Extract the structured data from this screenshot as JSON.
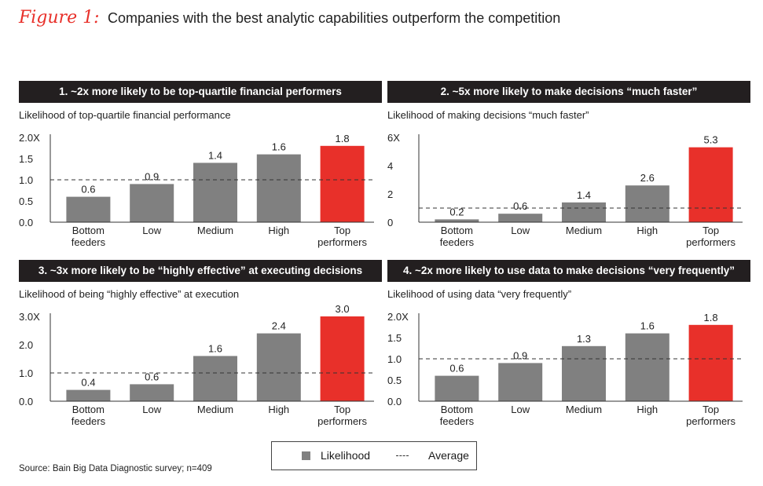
{
  "figure": {
    "label": "Figure 1:",
    "title": "Companies with the best analytic capabilities outperform the competition"
  },
  "legend": {
    "likelihood": "Likelihood",
    "average": "Average"
  },
  "source": "Source: Bain Big Data Diagnostic survey; n=409",
  "colors": {
    "bar": "#808080",
    "highlight": "#e8302a",
    "header": "#231f20"
  },
  "chart_data": [
    {
      "type": "bar",
      "title": "1. ~2x more likely to be top-quartile financial performers",
      "ylabel": "Likelihood of top-quartile financial performance",
      "categories": [
        [
          "Bottom",
          "feeders"
        ],
        [
          "Low"
        ],
        [
          "Medium"
        ],
        [
          "High"
        ],
        [
          "Top",
          "performers"
        ]
      ],
      "values": [
        0.6,
        0.9,
        1.4,
        1.6,
        1.8
      ],
      "value_labels": [
        "0.6",
        "0.9",
        "1.4",
        "1.6",
        "1.8"
      ],
      "highlight_index": 4,
      "average": 1.0,
      "ylim": [
        0,
        2.0
      ],
      "yticks": [
        0,
        0.5,
        1.0,
        1.5,
        2.0
      ],
      "ytick_labels": [
        "0.0",
        "0.5",
        "1.0",
        "1.5",
        "2.0X"
      ]
    },
    {
      "type": "bar",
      "title": "2. ~5x more likely to make decisions “much faster”",
      "ylabel": "Likelihood of making decisions “much faster”",
      "categories": [
        [
          "Bottom",
          "feeders"
        ],
        [
          "Low"
        ],
        [
          "Medium"
        ],
        [
          "High"
        ],
        [
          "Top",
          "performers"
        ]
      ],
      "values": [
        0.2,
        0.6,
        1.4,
        2.6,
        5.3
      ],
      "value_labels": [
        "0.2",
        "0.6",
        "1.4",
        "2.6",
        "5.3"
      ],
      "highlight_index": 4,
      "average": 1.0,
      "ylim": [
        0,
        6
      ],
      "yticks": [
        0,
        2,
        4,
        6
      ],
      "ytick_labels": [
        "0",
        "2",
        "4",
        "6X"
      ]
    },
    {
      "type": "bar",
      "title": "3. ~3x more likely to be “highly effective” at executing decisions",
      "ylabel": "Likelihood of being “highly effective” at execution",
      "categories": [
        [
          "Bottom",
          "feeders"
        ],
        [
          "Low"
        ],
        [
          "Medium"
        ],
        [
          "High"
        ],
        [
          "Top",
          "performers"
        ]
      ],
      "values": [
        0.4,
        0.6,
        1.6,
        2.4,
        3.0
      ],
      "value_labels": [
        "0.4",
        "0.6",
        "1.6",
        "2.4",
        "3.0"
      ],
      "highlight_index": 4,
      "average": 1.0,
      "ylim": [
        0,
        3.0
      ],
      "yticks": [
        0,
        1.0,
        2.0,
        3.0
      ],
      "ytick_labels": [
        "0.0",
        "1.0",
        "2.0",
        "3.0X"
      ]
    },
    {
      "type": "bar",
      "title": "4. ~2x more likely to use data to make decisions “very frequently”",
      "ylabel": "Likelihood of using data “very frequently”",
      "categories": [
        [
          "Bottom",
          "feeders"
        ],
        [
          "Low"
        ],
        [
          "Medium"
        ],
        [
          "High"
        ],
        [
          "Top",
          "performers"
        ]
      ],
      "values": [
        0.6,
        0.9,
        1.3,
        1.6,
        1.8
      ],
      "value_labels": [
        "0.6",
        "0.9",
        "1.3",
        "1.6",
        "1.8"
      ],
      "highlight_index": 4,
      "average": 1.0,
      "ylim": [
        0,
        2.0
      ],
      "yticks": [
        0,
        0.5,
        1.0,
        1.5,
        2.0
      ],
      "ytick_labels": [
        "0.0",
        "0.5",
        "1.0",
        "1.5",
        "2.0X"
      ]
    }
  ]
}
